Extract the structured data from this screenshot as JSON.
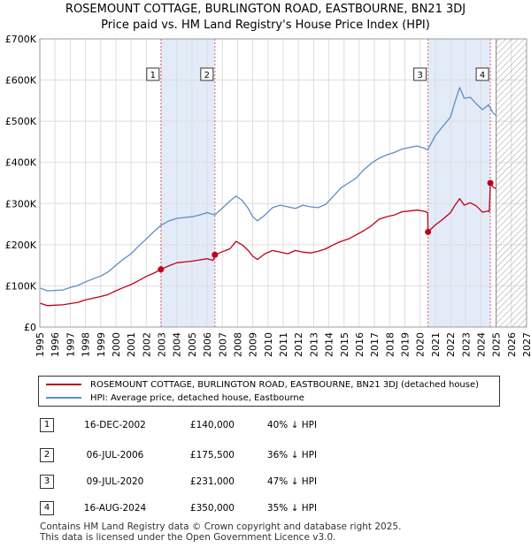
{
  "title_line1": "ROSEMOUNT COTTAGE, BURLINGTON ROAD, EASTBOURNE, BN21 3DJ",
  "title_line2": "Price paid vs. HM Land Registry's House Price Index (HPI)",
  "colors": {
    "property_line": "#c0001a",
    "hpi_line": "#5b8ec6",
    "shade": "#e3ebf8",
    "vline": "#e06070",
    "grid": "#dddddd",
    "hatch": "#aaaaaa"
  },
  "chart_data": {
    "type": "line",
    "title": "ROSEMOUNT COTTAGE, BURLINGTON ROAD, EASTBOURNE, BN21 3DJ",
    "subtitle": "Price paid vs. HM Land Registry's House Price Index (HPI)",
    "xlim": [
      1995,
      2027
    ],
    "ylim": [
      0,
      700000
    ],
    "x_ticks": [
      1995,
      1996,
      1997,
      1998,
      1999,
      2000,
      2001,
      2002,
      2003,
      2004,
      2005,
      2006,
      2007,
      2008,
      2009,
      2010,
      2011,
      2012,
      2013,
      2014,
      2015,
      2016,
      2017,
      2018,
      2019,
      2020,
      2021,
      2022,
      2023,
      2024,
      2025,
      2026,
      2027
    ],
    "y_ticks": [
      0,
      100000,
      200000,
      300000,
      400000,
      500000,
      600000,
      700000
    ],
    "y_tick_labels": [
      "£0",
      "£100K",
      "£200K",
      "£300K",
      "£400K",
      "£500K",
      "£600K",
      "£700K"
    ],
    "grid": true,
    "hatch_from": 2025.0,
    "shaded_regions": [
      [
        2002.96,
        2006.51
      ],
      [
        2020.52,
        2024.62
      ]
    ],
    "series": [
      {
        "name": "ROSEMOUNT COTTAGE, BURLINGTON ROAD, EASTBOURNE, BN21 3DJ (detached house)",
        "color": "#c0001a",
        "x": [
          1995.0,
          1995.5,
          1996.0,
          1996.5,
          1997.0,
          1997.5,
          1998.0,
          1998.5,
          1999.0,
          1999.5,
          2000.0,
          2000.5,
          2001.0,
          2001.5,
          2002.0,
          2002.5,
          2002.96,
          2003.5,
          2004.0,
          2004.5,
          2005.0,
          2005.5,
          2006.0,
          2006.4,
          2006.51,
          2007.0,
          2007.5,
          2007.9,
          2008.3,
          2008.7,
          2009.0,
          2009.3,
          2009.8,
          2010.3,
          2010.8,
          2011.3,
          2011.8,
          2012.3,
          2012.8,
          2013.3,
          2013.8,
          2014.3,
          2014.8,
          2015.3,
          2015.8,
          2016.3,
          2016.8,
          2017.3,
          2017.8,
          2018.3,
          2018.8,
          2019.3,
          2019.8,
          2020.3,
          2020.5,
          2020.52,
          2021.0,
          2021.5,
          2022.0,
          2022.3,
          2022.6,
          2022.9,
          2023.3,
          2023.7,
          2024.1,
          2024.45,
          2024.55,
          2024.62,
          2024.8,
          2025.0
        ],
        "values": [
          58000,
          52000,
          53000,
          54000,
          57000,
          60000,
          66000,
          70000,
          74000,
          79000,
          88000,
          96000,
          103000,
          113000,
          123000,
          131000,
          140000,
          149000,
          156000,
          158000,
          160000,
          163000,
          166000,
          162000,
          175500,
          183000,
          190000,
          208000,
          200000,
          186000,
          172000,
          164000,
          178000,
          186000,
          182000,
          178000,
          186000,
          182000,
          180000,
          184000,
          190000,
          200000,
          208000,
          214000,
          224000,
          234000,
          246000,
          262000,
          268000,
          272000,
          280000,
          282000,
          284000,
          281000,
          278000,
          231000,
          248000,
          262000,
          278000,
          296000,
          312000,
          296000,
          302000,
          294000,
          279000,
          282000,
          280000,
          350000,
          340000,
          336000
        ]
      },
      {
        "name": "HPI: Average price, detached house, Eastbourne",
        "color": "#5b8ec6",
        "x": [
          1995.0,
          1995.5,
          1996.0,
          1996.5,
          1997.0,
          1997.5,
          1998.0,
          1998.5,
          1999.0,
          1999.5,
          2000.0,
          2000.5,
          2001.0,
          2001.5,
          2002.0,
          2002.5,
          2003.0,
          2003.5,
          2004.0,
          2004.5,
          2005.0,
          2005.5,
          2006.0,
          2006.5,
          2007.0,
          2007.5,
          2007.9,
          2008.3,
          2008.7,
          2009.0,
          2009.3,
          2009.8,
          2010.3,
          2010.8,
          2011.3,
          2011.8,
          2012.3,
          2012.8,
          2013.3,
          2013.8,
          2014.3,
          2014.8,
          2015.3,
          2015.8,
          2016.3,
          2016.8,
          2017.3,
          2017.8,
          2018.3,
          2018.8,
          2019.3,
          2019.8,
          2020.3,
          2020.5,
          2021.0,
          2021.5,
          2022.0,
          2022.3,
          2022.6,
          2022.9,
          2023.3,
          2023.7,
          2024.1,
          2024.5,
          2024.8,
          2025.0
        ],
        "values": [
          95000,
          88000,
          89000,
          90000,
          96000,
          101000,
          110000,
          117000,
          124000,
          134000,
          150000,
          165000,
          178000,
          197000,
          214000,
          232000,
          248000,
          258000,
          264000,
          266000,
          268000,
          272000,
          278000,
          272000,
          289000,
          306000,
          318000,
          308000,
          288000,
          268000,
          258000,
          272000,
          290000,
          296000,
          292000,
          288000,
          296000,
          292000,
          290000,
          298000,
          318000,
          338000,
          350000,
          362000,
          382000,
          398000,
          410000,
          418000,
          424000,
          432000,
          436000,
          440000,
          434000,
          430000,
          465000,
          488000,
          510000,
          548000,
          582000,
          556000,
          558000,
          542000,
          528000,
          540000,
          520000,
          514000
        ]
      }
    ],
    "sales": [
      {
        "label": "1",
        "x": 2002.96,
        "value": 140000
      },
      {
        "label": "2",
        "x": 2006.51,
        "value": 175500
      },
      {
        "label": "3",
        "x": 2020.52,
        "value": 231000
      },
      {
        "label": "4",
        "x": 2024.62,
        "value": 350000
      }
    ]
  },
  "legend": {
    "property_label": "ROSEMOUNT COTTAGE, BURLINGTON ROAD, EASTBOURNE, BN21 3DJ (detached house)",
    "hpi_label": "HPI: Average price, detached house, Eastbourne"
  },
  "sales_table": [
    {
      "num": "1",
      "date": "16-DEC-2002",
      "price": "£140,000",
      "hpi": "40% ↓ HPI"
    },
    {
      "num": "2",
      "date": "06-JUL-2006",
      "price": "£175,500",
      "hpi": "36% ↓ HPI"
    },
    {
      "num": "3",
      "date": "09-JUL-2020",
      "price": "£231,000",
      "hpi": "47% ↓ HPI"
    },
    {
      "num": "4",
      "date": "16-AUG-2024",
      "price": "£350,000",
      "hpi": "35% ↓ HPI"
    }
  ],
  "footer": {
    "line1": "Contains HM Land Registry data © Crown copyright and database right 2025.",
    "line2": "This data is licensed under the Open Government Licence v3.0."
  }
}
